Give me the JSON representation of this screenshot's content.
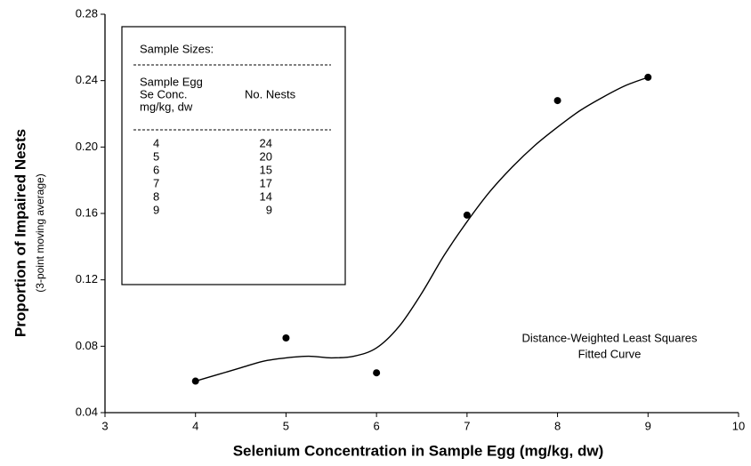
{
  "chart_data": {
    "type": "scatter",
    "xlabel": "Selenium Concentration in Sample Egg (mg/kg, dw)",
    "ylabel": "Proportion of Impaired Nests",
    "ylabel_sub": "(3-point moving average)",
    "xlim": [
      3,
      10
    ],
    "xticks": [
      3,
      4,
      5,
      6,
      7,
      8,
      9,
      10
    ],
    "ylim": [
      0.04,
      0.28
    ],
    "yticks": [
      0.04,
      0.08,
      0.12,
      0.16,
      {
        "value": 0.2,
        "label": "0.20"
      },
      0.24,
      0.28
    ],
    "color": "#000000",
    "series": [
      {
        "mode": "markers",
        "x": [
          4,
          5,
          6,
          7,
          8,
          9
        ],
        "values": [
          0.059,
          0.085,
          0.064,
          0.159,
          0.228,
          0.242
        ]
      },
      {
        "mode": "line",
        "x": [
          4,
          4.25,
          4.5,
          4.75,
          5,
          5.25,
          5.5,
          5.75,
          6,
          6.25,
          6.5,
          6.75,
          7,
          7.25,
          7.5,
          7.75,
          8,
          8.25,
          8.5,
          8.75,
          9
        ],
        "values": [
          0.059,
          0.063,
          0.067,
          0.071,
          0.073,
          0.074,
          0.073,
          0.074,
          0.079,
          0.092,
          0.112,
          0.135,
          0.155,
          0.173,
          0.188,
          0.201,
          0.212,
          0.222,
          0.23,
          0.237,
          0.242
        ]
      }
    ],
    "annotation": [
      "Distance-Weighted Least Squares",
      "Fitted Curve"
    ],
    "inset": {
      "title": "Sample Sizes:",
      "header_left": [
        "Sample Egg",
        "Se Conc.",
        "mg/kg, dw"
      ],
      "header_right": "No. Nests",
      "rows": [
        [
          4,
          24
        ],
        [
          5,
          20
        ],
        [
          6,
          15
        ],
        [
          7,
          17
        ],
        [
          8,
          14
        ],
        [
          9,
          9
        ]
      ]
    }
  }
}
